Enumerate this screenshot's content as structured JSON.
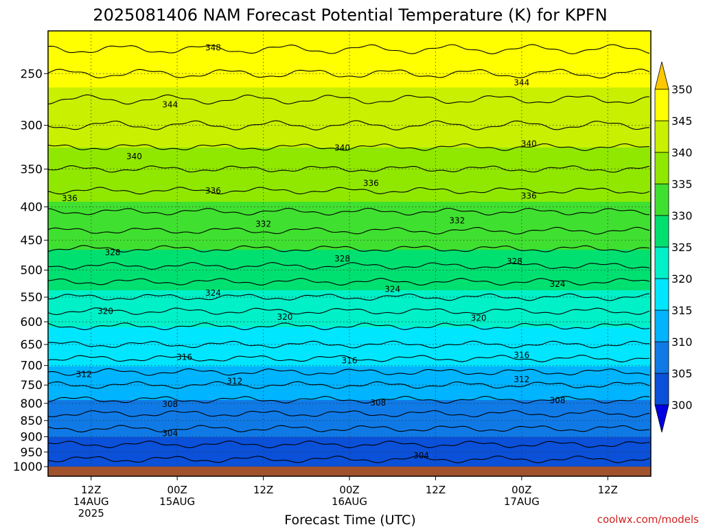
{
  "title": "2025081406 NAM Forecast Potential Temperature (K) for KPFN",
  "watermark": "coolwx.com/models",
  "chart_data": {
    "type": "heatmap",
    "title": "2025081406 NAM Forecast Potential Temperature (K) for KPFN",
    "xlabel": "Forecast Time (UTC)",
    "ylabel": "",
    "x_range_hours": [
      0,
      84
    ],
    "y_pressure_levels": [
      250,
      300,
      350,
      400,
      450,
      500,
      550,
      600,
      650,
      700,
      750,
      800,
      850,
      900,
      950,
      1000
    ],
    "y_tick_labels": [
      "250",
      "300",
      "350",
      "400",
      "450",
      "500",
      "550",
      "600",
      "650",
      "700",
      "750",
      "800",
      "850",
      "900",
      "950",
      "1000"
    ],
    "x_ticks": [
      {
        "hour": 6,
        "lines": [
          "12Z",
          "14AUG",
          "2025"
        ]
      },
      {
        "hour": 18,
        "lines": [
          "00Z",
          "15AUG"
        ]
      },
      {
        "hour": 30,
        "lines": [
          "12Z"
        ]
      },
      {
        "hour": 42,
        "lines": [
          "00Z",
          "16AUG"
        ]
      },
      {
        "hour": 54,
        "lines": [
          "12Z"
        ]
      },
      {
        "hour": 66,
        "lines": [
          "00Z",
          "17AUG"
        ]
      },
      {
        "hour": 78,
        "lines": [
          "12Z"
        ]
      }
    ],
    "colorbar": {
      "ticks": [
        "300",
        "305",
        "310",
        "315",
        "320",
        "325",
        "330",
        "335",
        "340",
        "345",
        "350"
      ],
      "colors": [
        "#0000e0",
        "#0a50d8",
        "#0f7ae6",
        "#00b4ff",
        "#00e6ff",
        "#00f0c8",
        "#00e070",
        "#40e030",
        "#90e800",
        "#c8f000",
        "#ffff00",
        "#ffc800"
      ]
    },
    "isentrope_profile": [
      {
        "p": 215,
        "theta": 349.5
      },
      {
        "p": 250,
        "theta": 346
      },
      {
        "p": 300,
        "theta": 342
      },
      {
        "p": 350,
        "theta": 338
      },
      {
        "p": 400,
        "theta": 334.5
      },
      {
        "p": 450,
        "theta": 331
      },
      {
        "p": 500,
        "theta": 327.5
      },
      {
        "p": 550,
        "theta": 324
      },
      {
        "p": 600,
        "theta": 320.5
      },
      {
        "p": 650,
        "theta": 318
      },
      {
        "p": 700,
        "theta": 315
      },
      {
        "p": 750,
        "theta": 312
      },
      {
        "p": 800,
        "theta": 309.5
      },
      {
        "p": 850,
        "theta": 307
      },
      {
        "p": 900,
        "theta": 305
      },
      {
        "p": 950,
        "theta": 303
      },
      {
        "p": 1000,
        "theta": 301
      }
    ],
    "contour_labels": [
      {
        "value": "348",
        "hour": 23,
        "p": 228
      },
      {
        "value": "344",
        "hour": 17,
        "p": 279
      },
      {
        "value": "344",
        "hour": 66,
        "p": 258
      },
      {
        "value": "340",
        "hour": 12,
        "p": 335
      },
      {
        "value": "340",
        "hour": 41,
        "p": 325
      },
      {
        "value": "340",
        "hour": 67,
        "p": 320
      },
      {
        "value": "336",
        "hour": 3,
        "p": 388
      },
      {
        "value": "336",
        "hour": 23,
        "p": 378
      },
      {
        "value": "336",
        "hour": 45,
        "p": 368
      },
      {
        "value": "336",
        "hour": 67,
        "p": 385
      },
      {
        "value": "332",
        "hour": 30,
        "p": 425
      },
      {
        "value": "332",
        "hour": 57,
        "p": 420
      },
      {
        "value": "328",
        "hour": 9,
        "p": 470
      },
      {
        "value": "328",
        "hour": 41,
        "p": 480
      },
      {
        "value": "328",
        "hour": 65,
        "p": 485
      },
      {
        "value": "324",
        "hour": 23,
        "p": 542
      },
      {
        "value": "324",
        "hour": 48,
        "p": 535
      },
      {
        "value": "324",
        "hour": 71,
        "p": 525
      },
      {
        "value": "320",
        "hour": 8,
        "p": 578
      },
      {
        "value": "320",
        "hour": 33,
        "p": 590
      },
      {
        "value": "320",
        "hour": 60,
        "p": 592
      },
      {
        "value": "316",
        "hour": 19,
        "p": 680
      },
      {
        "value": "316",
        "hour": 42,
        "p": 688
      },
      {
        "value": "316",
        "hour": 66,
        "p": 675
      },
      {
        "value": "312",
        "hour": 5,
        "p": 722
      },
      {
        "value": "312",
        "hour": 26,
        "p": 740
      },
      {
        "value": "312",
        "hour": 66,
        "p": 735
      },
      {
        "value": "308",
        "hour": 17,
        "p": 802
      },
      {
        "value": "308",
        "hour": 46,
        "p": 798
      },
      {
        "value": "308",
        "hour": 71,
        "p": 792
      },
      {
        "value": "304",
        "hour": 17,
        "p": 889
      },
      {
        "value": "304",
        "hour": 52,
        "p": 962
      }
    ]
  }
}
